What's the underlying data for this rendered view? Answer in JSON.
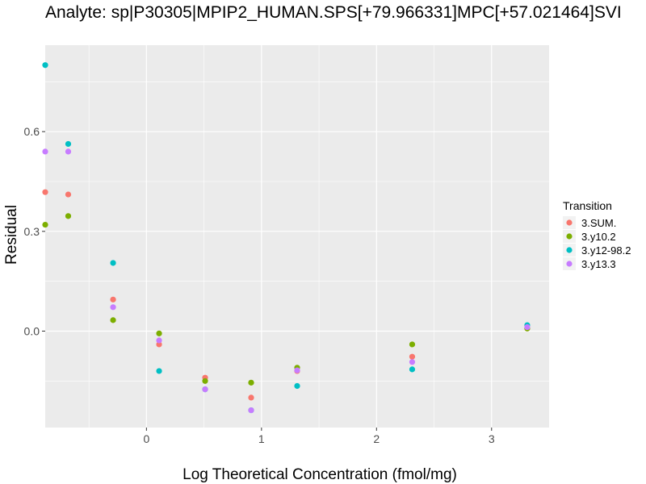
{
  "chart_data": {
    "type": "scatter",
    "title": "Analyte: sp|P30305|MPIP2_HUMAN.SPS[+79.966331]MPC[+57.021464]SVI",
    "xlabel": "Log Theoretical Concentration (fmol/mg)",
    "ylabel": "Residual",
    "xlim": [
      -0.88,
      3.5
    ],
    "ylim": [
      -0.29,
      0.86
    ],
    "x_ticks": [
      0,
      1,
      2,
      3
    ],
    "x_tick_labels": [
      "0",
      "1",
      "2",
      "3"
    ],
    "y_ticks": [
      0.0,
      0.3,
      0.6
    ],
    "y_tick_labels": [
      "0.0",
      "0.3",
      "0.6"
    ],
    "grid": true,
    "legend": {
      "title": "Transition",
      "position": "right"
    },
    "series": [
      {
        "name": "3.SUM.",
        "color": "#F8766D",
        "points": [
          [
            -0.88,
            0.418
          ],
          [
            -0.68,
            0.411
          ],
          [
            -0.29,
            0.095
          ],
          [
            0.11,
            -0.04
          ],
          [
            0.51,
            -0.14
          ],
          [
            0.91,
            -0.2
          ],
          [
            1.31,
            -0.12
          ],
          [
            2.31,
            -0.077
          ],
          [
            3.31,
            0.008
          ]
        ]
      },
      {
        "name": "3.y10.2",
        "color": "#7CAE00",
        "points": [
          [
            -0.88,
            0.32
          ],
          [
            -0.68,
            0.346
          ],
          [
            -0.29,
            0.033
          ],
          [
            0.11,
            -0.007
          ],
          [
            0.51,
            -0.15
          ],
          [
            0.91,
            -0.155
          ],
          [
            1.31,
            -0.11
          ],
          [
            2.31,
            -0.04
          ],
          [
            3.31,
            0.008
          ]
        ]
      },
      {
        "name": "3.y12-98.2",
        "color": "#00BFC4",
        "points": [
          [
            -0.88,
            0.8
          ],
          [
            -0.68,
            0.563
          ],
          [
            -0.29,
            0.205
          ],
          [
            0.11,
            -0.12
          ],
          [
            0.51,
            -0.175
          ],
          [
            0.91,
            -0.238
          ],
          [
            1.31,
            -0.165
          ],
          [
            2.31,
            -0.115
          ],
          [
            3.31,
            0.018
          ]
        ]
      },
      {
        "name": "3.y13.3",
        "color": "#C77CFF",
        "points": [
          [
            -0.88,
            0.54
          ],
          [
            -0.68,
            0.54
          ],
          [
            -0.29,
            0.072
          ],
          [
            0.11,
            -0.028
          ],
          [
            0.51,
            -0.175
          ],
          [
            0.91,
            -0.238
          ],
          [
            1.31,
            -0.118
          ],
          [
            2.31,
            -0.093
          ],
          [
            3.31,
            0.012
          ]
        ]
      }
    ]
  }
}
